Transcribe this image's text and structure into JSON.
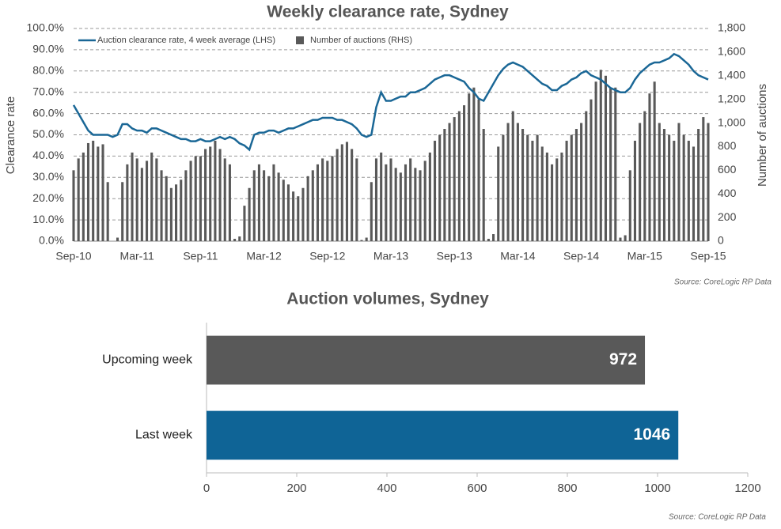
{
  "chart_data": [
    {
      "type": "combo",
      "title": "Weekly clearance rate, Sydney",
      "ylabel": "Clearance rate",
      "y2label": "Number of auctions",
      "source": "Source: CoreLogic  RP Data",
      "categories": [
        "Sep-10",
        null,
        null,
        null,
        null,
        null,
        null,
        null,
        null,
        null,
        null,
        null,
        null,
        "Mar-11",
        null,
        null,
        null,
        null,
        null,
        null,
        null,
        null,
        null,
        null,
        null,
        null,
        "Sep-11",
        null,
        null,
        null,
        null,
        null,
        null,
        null,
        null,
        null,
        null,
        null,
        null,
        "Mar-12",
        null,
        null,
        null,
        null,
        null,
        null,
        null,
        null,
        null,
        null,
        null,
        null,
        "Sep-12",
        null,
        null,
        null,
        null,
        null,
        null,
        null,
        null,
        null,
        null,
        null,
        null,
        "Mar-13",
        null,
        null,
        null,
        null,
        null,
        null,
        null,
        null,
        null,
        null,
        null,
        null,
        "Sep-13",
        null,
        null,
        null,
        null,
        null,
        null,
        null,
        null,
        null,
        null,
        null,
        null,
        "Mar-14",
        null,
        null,
        null,
        null,
        null,
        null,
        null,
        null,
        null,
        null,
        null,
        null,
        "Sep-14",
        null,
        null,
        null,
        null,
        null,
        null,
        null,
        null,
        null,
        null,
        null,
        null,
        "Mar-15",
        null,
        null,
        null,
        null,
        null,
        null,
        null,
        null,
        null,
        null,
        null,
        null,
        "Sep-15"
      ],
      "series": [
        {
          "name": "Auction clearance rate, 4 week average (LHS)",
          "type": "line",
          "color": "#1a6796",
          "values": [
            64,
            60,
            56,
            52,
            50,
            50,
            50,
            50,
            49,
            50,
            55,
            55,
            53,
            52,
            52,
            51,
            53,
            53,
            52,
            51,
            50,
            49,
            48,
            48,
            47,
            47,
            48,
            47,
            47,
            48,
            49,
            48,
            49,
            48,
            46,
            45,
            43,
            50,
            51,
            51,
            52,
            52,
            51,
            52,
            53,
            53,
            54,
            55,
            56,
            57,
            57,
            58,
            58,
            58,
            57,
            57,
            56,
            55,
            53,
            50,
            49,
            50,
            63,
            70,
            66,
            66,
            67,
            68,
            68,
            70,
            70,
            71,
            72,
            74,
            76,
            77,
            78,
            78,
            77,
            76,
            75,
            72,
            70,
            67,
            66,
            70,
            74,
            78,
            81,
            83,
            84,
            83,
            82,
            80,
            78,
            76,
            74,
            73,
            71,
            71,
            73,
            74,
            76,
            77,
            79,
            80,
            78,
            77,
            76,
            74,
            72,
            71,
            70,
            70,
            72,
            76,
            79,
            81,
            83,
            84,
            84,
            85,
            86,
            88,
            87,
            85,
            83,
            80,
            78,
            77,
            76
          ]
        },
        {
          "name": "Number of auctions (RHS)",
          "type": "bar",
          "axis": "y2",
          "color": "#595959",
          "values": [
            600,
            700,
            750,
            830,
            850,
            800,
            820,
            500,
            0,
            30,
            500,
            650,
            750,
            700,
            620,
            680,
            750,
            700,
            600,
            550,
            450,
            480,
            520,
            600,
            680,
            720,
            720,
            780,
            800,
            850,
            780,
            700,
            650,
            20,
            40,
            300,
            450,
            600,
            650,
            600,
            550,
            650,
            580,
            520,
            480,
            420,
            380,
            450,
            550,
            600,
            650,
            700,
            680,
            720,
            780,
            820,
            840,
            780,
            700,
            10,
            30,
            500,
            700,
            750,
            650,
            700,
            620,
            580,
            650,
            700,
            620,
            600,
            680,
            750,
            850,
            900,
            950,
            1000,
            1050,
            1100,
            1150,
            1250,
            1300,
            1200,
            950,
            20,
            60,
            800,
            900,
            1000,
            1100,
            1000,
            950,
            900,
            850,
            900,
            800,
            750,
            650,
            700,
            750,
            850,
            900,
            950,
            1000,
            1100,
            1200,
            1350,
            1450,
            1400,
            1300,
            1300,
            30,
            50,
            600,
            850,
            1000,
            1100,
            1250,
            1350,
            1000,
            950,
            900,
            850,
            1000,
            900,
            850,
            800,
            950,
            1050,
            1000
          ]
        }
      ],
      "ylim": [
        0,
        100
      ],
      "yticks": [
        {
          "value": 0,
          "label": "0.0%"
        },
        {
          "value": 10,
          "label": "10.0%"
        },
        {
          "value": 20,
          "label": "20.0%"
        },
        {
          "value": 30,
          "label": "30.0%"
        },
        {
          "value": 40,
          "label": "40.0%"
        },
        {
          "value": 50,
          "label": "50.0%"
        },
        {
          "value": 60,
          "label": "60.0%"
        },
        {
          "value": 70,
          "label": "70.0%"
        },
        {
          "value": 80,
          "label": "80.0%"
        },
        {
          "value": 90,
          "label": "90.0%"
        },
        {
          "value": 100,
          "label": "100.0%"
        }
      ],
      "y2lim": [
        0,
        1800
      ],
      "y2ticks": [
        0,
        200,
        400,
        600,
        800,
        {
          "value": 1000,
          "label": "1,000"
        },
        {
          "value": 1200,
          "label": "1,200"
        },
        {
          "value": 1400,
          "label": "1,400"
        },
        {
          "value": 1600,
          "label": "1,600"
        },
        {
          "value": 1800,
          "label": "1,800"
        }
      ],
      "grid": true
    },
    {
      "type": "barh",
      "title": "Auction volumes, Sydney",
      "source": "Source: CoreLogic  RP Data",
      "categories": [
        "Upcoming week",
        "Last week"
      ],
      "values": [
        972,
        1046
      ],
      "colors": [
        "#595959",
        "#0f6496"
      ],
      "xlim": [
        0,
        1200
      ],
      "xticks": [
        0,
        200,
        400,
        600,
        800,
        1000,
        1200
      ]
    }
  ]
}
